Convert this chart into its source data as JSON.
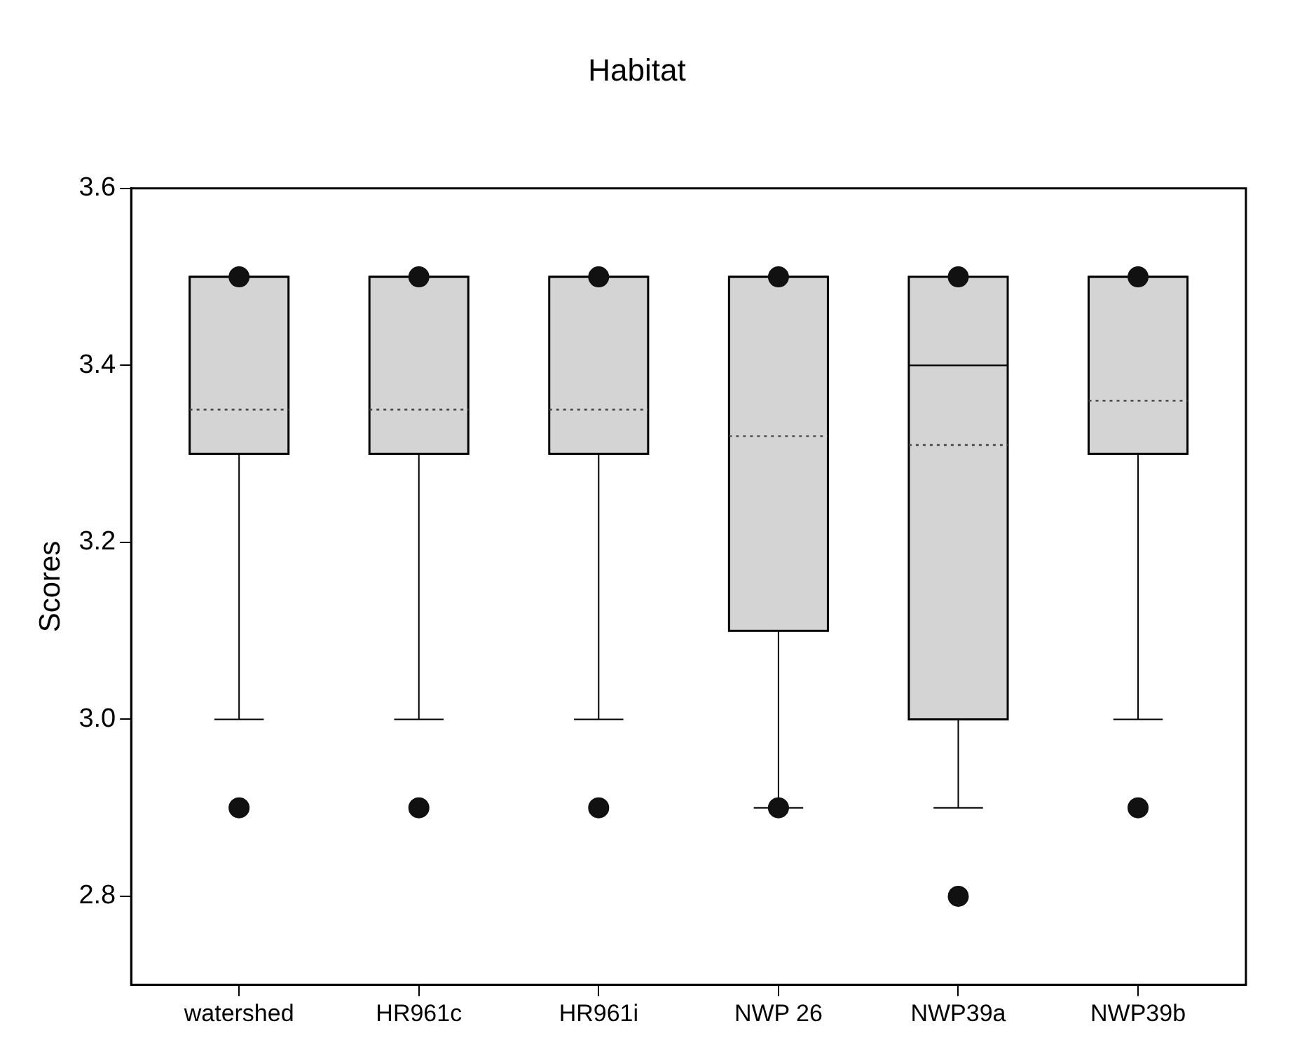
{
  "chart_data": {
    "type": "box",
    "title": "Habitat",
    "ylabel": "Scores",
    "categories": [
      "watershed",
      "HR961c",
      "HR961i",
      "NWP 26",
      "NWP39a",
      "NWP39b"
    ],
    "color": "#d4d4d4",
    "ylim": [
      2.7,
      3.6
    ],
    "yticks": [
      2.8,
      {
        "value": 3,
        "label": "3.0"
      },
      3.2,
      3.4,
      3.6
    ],
    "grid": false,
    "legend": false,
    "boxes": [
      {
        "low": 3.0,
        "q1": 3.3,
        "median": 3.5,
        "q3": 3.5,
        "high": 3.5,
        "mean": 3.35,
        "outliers": [
          2.9,
          3.5
        ]
      },
      {
        "low": 3.0,
        "q1": 3.3,
        "median": 3.5,
        "q3": 3.5,
        "high": 3.5,
        "mean": 3.35,
        "outliers": [
          2.9,
          3.5
        ]
      },
      {
        "low": 3.0,
        "q1": 3.3,
        "median": 3.5,
        "q3": 3.5,
        "high": 3.5,
        "mean": 3.35,
        "outliers": [
          2.9,
          3.5
        ]
      },
      {
        "low": 2.9,
        "q1": 3.1,
        "median": 3.5,
        "q3": 3.5,
        "high": 3.5,
        "mean": 3.32,
        "outliers": [
          2.9,
          3.5
        ]
      },
      {
        "low": 2.9,
        "q1": 3.0,
        "median": 3.4,
        "q3": 3.5,
        "high": 3.5,
        "mean": 3.31,
        "outliers": [
          2.8,
          3.5
        ]
      },
      {
        "low": 3.0,
        "q1": 3.3,
        "median": 3.5,
        "q3": 3.5,
        "high": 3.5,
        "mean": 3.36,
        "outliers": [
          2.9,
          3.5
        ]
      }
    ]
  }
}
